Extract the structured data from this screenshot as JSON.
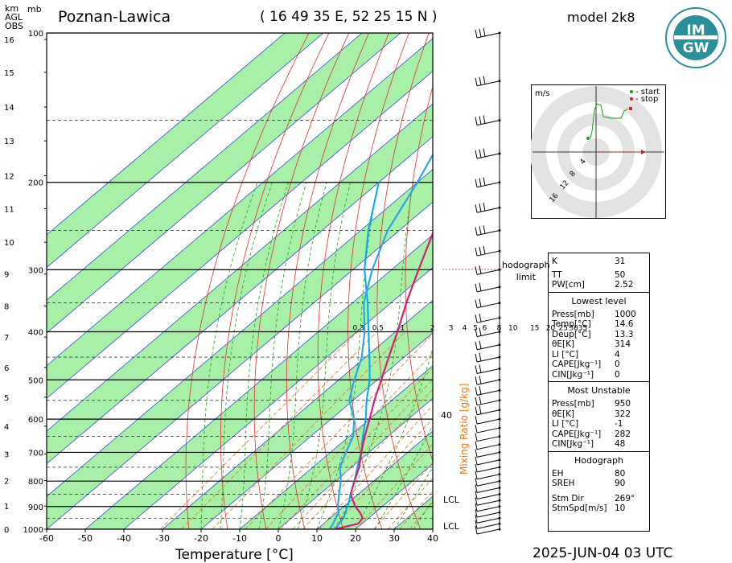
{
  "header": {
    "station": "Poznan-Lawica",
    "coords": "( 16 49 35 E, 52 25 15 N )",
    "model": "model 2k8",
    "km_label": "km\nAGL\nOBS",
    "mb_label": "mb",
    "date_time": "2025-JUN-04   03 UTC"
  },
  "logo": {
    "text": "IMGW",
    "top": "IM",
    "bottom": "GW"
  },
  "hodograph": {
    "unit": "m/s",
    "legend_start": "- start",
    "legend_stop": "- stop",
    "ring_labels": [
      "4",
      "8",
      "12",
      "16"
    ],
    "limit_label_1": "hodograph",
    "limit_label_2": "limit"
  },
  "chart_data": {
    "type": "skew-t",
    "xlabel": "Temperature [°C]",
    "x_ticks": [
      "-60",
      "-50",
      "-40",
      "-30",
      "-20",
      "-10",
      "0",
      "10",
      "20",
      "30",
      "40"
    ],
    "x_range": [
      -60,
      40
    ],
    "pressure_ticks": [
      "100",
      "200",
      "300",
      "400",
      "500",
      "600",
      "700",
      "800",
      "900",
      "1000"
    ],
    "height_ticks": [
      "0",
      "1",
      "2",
      "3",
      "4",
      "5",
      "6",
      "7",
      "8",
      "9",
      "10",
      "11",
      "12",
      "13",
      "14",
      "15",
      "16"
    ],
    "mixing_ratio_label": "Mixing Ratio [g/kg]",
    "mixing_ratio_ticks": [
      "0.3",
      "0.5",
      "1",
      "2",
      "3",
      "4",
      "5",
      "6",
      "8",
      "10",
      "15",
      "20",
      "25",
      "30",
      "35"
    ],
    "right_label_40": "40",
    "lcl_label": "LCL",
    "temperature_profile": [
      {
        "p": 1000,
        "t": 14.6
      },
      {
        "p": 975,
        "t": 19
      },
      {
        "p": 950,
        "t": 18.5
      },
      {
        "p": 925,
        "t": 16
      },
      {
        "p": 900,
        "t": 13
      },
      {
        "p": 850,
        "t": 8
      },
      {
        "p": 800,
        "t": 5
      },
      {
        "p": 750,
        "t": 2
      },
      {
        "p": 700,
        "t": -2
      },
      {
        "p": 650,
        "t": -6
      },
      {
        "p": 600,
        "t": -10
      },
      {
        "p": 550,
        "t": -14.5
      },
      {
        "p": 500,
        "t": -19
      },
      {
        "p": 450,
        "t": -24
      },
      {
        "p": 400,
        "t": -29.5
      },
      {
        "p": 350,
        "t": -36
      },
      {
        "p": 300,
        "t": -43
      },
      {
        "p": 250,
        "t": -51
      },
      {
        "p": 225,
        "t": -53.5
      },
      {
        "p": 200,
        "t": -55
      },
      {
        "p": 175,
        "t": -57
      },
      {
        "p": 150,
        "t": -58
      },
      {
        "p": 125,
        "t": -59.5
      },
      {
        "p": 100,
        "t": -62
      }
    ],
    "dewpoint_profile": [
      {
        "p": 1000,
        "t": 13.3
      },
      {
        "p": 975,
        "t": 12.5
      },
      {
        "p": 950,
        "t": 11.5
      },
      {
        "p": 925,
        "t": 10.5
      },
      {
        "p": 900,
        "t": 8.5
      },
      {
        "p": 850,
        "t": 5
      },
      {
        "p": 800,
        "t": 1.5
      },
      {
        "p": 750,
        "t": -3
      },
      {
        "p": 700,
        "t": -6
      },
      {
        "p": 650,
        "t": -9
      },
      {
        "p": 600,
        "t": -14
      },
      {
        "p": 550,
        "t": -21
      },
      {
        "p": 500,
        "t": -26
      },
      {
        "p": 450,
        "t": -31
      },
      {
        "p": 400,
        "t": -38
      },
      {
        "p": 350,
        "t": -47
      },
      {
        "p": 300,
        "t": -55
      },
      {
        "p": 250,
        "t": -63
      },
      {
        "p": 200,
        "t": -70
      },
      {
        "p": 150,
        "t": -80
      },
      {
        "p": 125,
        "t": -84
      },
      {
        "p": 100,
        "t": -88
      }
    ],
    "parcel_profile": [
      {
        "p": 1000,
        "t": 14.6
      },
      {
        "p": 950,
        "t": 13.5
      },
      {
        "p": 900,
        "t": 11
      },
      {
        "p": 850,
        "t": 8
      },
      {
        "p": 800,
        "t": 5
      },
      {
        "p": 750,
        "t": 1.5
      },
      {
        "p": 700,
        "t": -2
      },
      {
        "p": 650,
        "t": -6.5
      },
      {
        "p": 600,
        "t": -11
      },
      {
        "p": 550,
        "t": -16.5
      },
      {
        "p": 500,
        "t": -22
      },
      {
        "p": 450,
        "t": -29
      },
      {
        "p": 400,
        "t": -37
      },
      {
        "p": 350,
        "t": -46
      },
      {
        "p": 300,
        "t": -57
      },
      {
        "p": 250,
        "t": -68
      },
      {
        "p": 200,
        "t": -80
      }
    ]
  },
  "indices": {
    "general": [
      {
        "k": "K",
        "v": "31"
      },
      {
        "k": "TT",
        "v": "50"
      },
      {
        "k": "PW[cm]",
        "v": "2.52"
      }
    ],
    "lowest_title": "Lowest level",
    "lowest": [
      {
        "k": "Press[mb]",
        "v": "1000"
      },
      {
        "k": "Temp[°C]",
        "v": "14.6"
      },
      {
        "k": "Deup[°C]",
        "v": "13.3"
      },
      {
        "k": "θE[K]",
        "v": "314"
      },
      {
        "k": "LI [°C]",
        "v": "4"
      },
      {
        "k": "CAPE[Jkg⁻¹]",
        "v": "0"
      },
      {
        "k": "CIN[Jkg⁻¹]",
        "v": "0"
      }
    ],
    "unstable_title": "Most Unstable",
    "unstable": [
      {
        "k": "Press[mb]",
        "v": "950"
      },
      {
        "k": "θE[K]",
        "v": "322"
      },
      {
        "k": "LI [°C]",
        "v": "-1"
      },
      {
        "k": "CAPE[Jkg⁻¹]",
        "v": "282"
      },
      {
        "k": "CIN[Jkg⁻¹]",
        "v": "48"
      }
    ],
    "hodo_title": "Hodograph",
    "hodo": [
      {
        "k": "EH",
        "v": "80"
      },
      {
        "k": "SREH",
        "v": "90"
      },
      {
        "k": "Stm Dir",
        "v": "269°"
      },
      {
        "k": "StmSpd[m/s]",
        "v": "10"
      }
    ]
  },
  "colors": {
    "temperature": "#d4206e",
    "dewpoint": "#2aa7e0",
    "parcel": "#00aaee",
    "dry_band": "#a8f0a8",
    "isotherm": "#3050d0",
    "dry_adiabat": "#e03030",
    "moist_adiabat": "#20a020",
    "mixing_ratio": "#e07a20"
  }
}
